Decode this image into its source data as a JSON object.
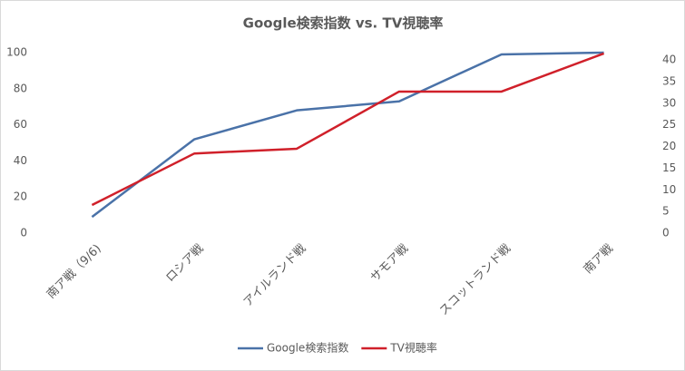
{
  "chart_data": {
    "type": "line",
    "title": "Google検索指数 vs. TV視聴率",
    "categories": [
      "南ア戦（9/6)",
      "ロシア戦",
      "アイルランド戦",
      "サモア戦",
      "スコットランド戦",
      "南ア戦"
    ],
    "series": [
      {
        "name": "Google検索指数",
        "color": "#4a72a8",
        "values": [
          9,
          52,
          68,
          73,
          99,
          100
        ]
      },
      {
        "name": "TV視聴率",
        "color": "#d0202a",
        "axis": "y2",
        "values": [
          6.5,
          18.4,
          19.5,
          32.7,
          32.7,
          41.5
        ]
      }
    ],
    "ylim": [
      0,
      100
    ],
    "yticks": [
      0,
      20,
      40,
      60,
      80,
      100
    ],
    "y2lim": [
      0,
      41.7
    ],
    "y2ticks": [
      0,
      5,
      10,
      15,
      20,
      25,
      30,
      35,
      40
    ],
    "grid": false,
    "legend": "bottom"
  }
}
